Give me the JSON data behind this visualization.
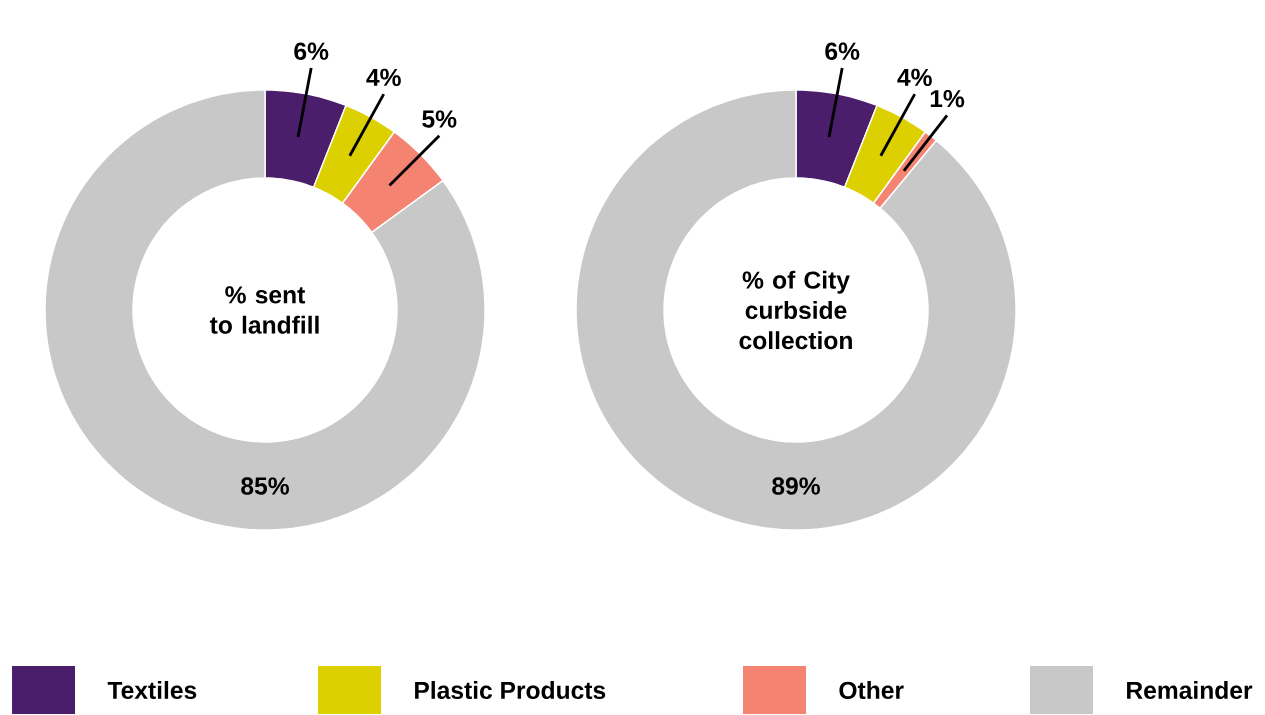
{
  "chart_data": [
    {
      "type": "donut",
      "title": "% sent to landfill",
      "categories": [
        "Textiles",
        "Plastic Products",
        "Other",
        "Remainder"
      ],
      "values": [
        6,
        4,
        5,
        85
      ],
      "colors": [
        "#4a1e6b",
        "#ddd000",
        "#f48371",
        "#c8c8c8"
      ],
      "value_labels": [
        "6%",
        "4%",
        "5%",
        "85%"
      ],
      "legend": "bottom"
    },
    {
      "type": "donut",
      "title": "% of City curbside collection",
      "categories": [
        null,
        null,
        null,
        null
      ],
      "values": [
        6,
        4,
        1,
        89
      ],
      "colors": [
        "#4a1e6b",
        "#ddd000",
        "#f48371",
        "#c8c8c8"
      ],
      "value_labels": [
        "6%",
        "4%",
        "1%",
        "89%"
      ]
    }
  ]
}
